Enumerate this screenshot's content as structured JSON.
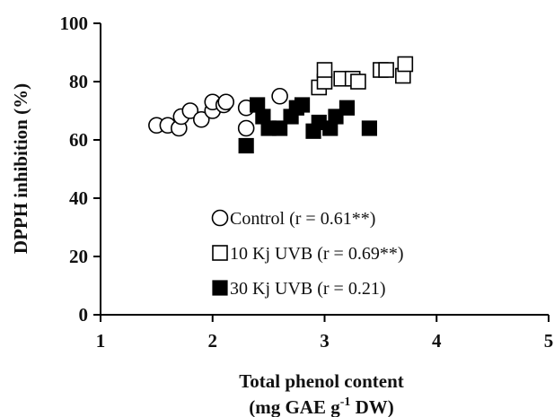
{
  "chart_data": {
    "type": "scatter",
    "xlabel_line1": "Total phenol content",
    "xlabel_line2_prefix": "(mg GAE g",
    "xlabel_line2_sup": "-1",
    "xlabel_line2_suffix": " DW)",
    "ylabel": "DPPH inhibition  (%)",
    "xlim": [
      1,
      5
    ],
    "ylim": [
      0,
      100
    ],
    "x_ticks": [
      1,
      2,
      3,
      4,
      5
    ],
    "y_ticks": [
      0,
      20,
      40,
      60,
      80,
      100
    ],
    "legend_position": "inside-lower-center",
    "series": [
      {
        "name": "Control (r = 0.61**)",
        "marker": "open-circle",
        "points": [
          [
            1.5,
            65
          ],
          [
            1.6,
            65
          ],
          [
            1.7,
            64
          ],
          [
            1.72,
            68
          ],
          [
            1.8,
            70
          ],
          [
            1.9,
            67
          ],
          [
            2.0,
            70
          ],
          [
            2.0,
            73
          ],
          [
            2.1,
            72
          ],
          [
            2.12,
            73
          ],
          [
            2.3,
            71
          ],
          [
            2.3,
            64
          ],
          [
            2.6,
            75
          ]
        ]
      },
      {
        "name": "10 Kj UVB (r = 0.69**)",
        "marker": "open-square",
        "points": [
          [
            2.95,
            78
          ],
          [
            3.0,
            80
          ],
          [
            3.0,
            84
          ],
          [
            3.15,
            81
          ],
          [
            3.25,
            81
          ],
          [
            3.3,
            80
          ],
          [
            3.5,
            84
          ],
          [
            3.55,
            84
          ],
          [
            3.7,
            82
          ],
          [
            3.72,
            86
          ]
        ]
      },
      {
        "name": "30 Kj UVB (r = 0.21)",
        "marker": "filled-square",
        "points": [
          [
            2.3,
            58
          ],
          [
            2.4,
            72
          ],
          [
            2.45,
            68
          ],
          [
            2.5,
            64
          ],
          [
            2.6,
            64
          ],
          [
            2.7,
            68
          ],
          [
            2.75,
            71
          ],
          [
            2.8,
            72
          ],
          [
            2.9,
            63
          ],
          [
            2.95,
            66
          ],
          [
            3.05,
            64
          ],
          [
            3.1,
            68
          ],
          [
            3.2,
            71
          ],
          [
            3.4,
            64
          ]
        ]
      }
    ]
  }
}
